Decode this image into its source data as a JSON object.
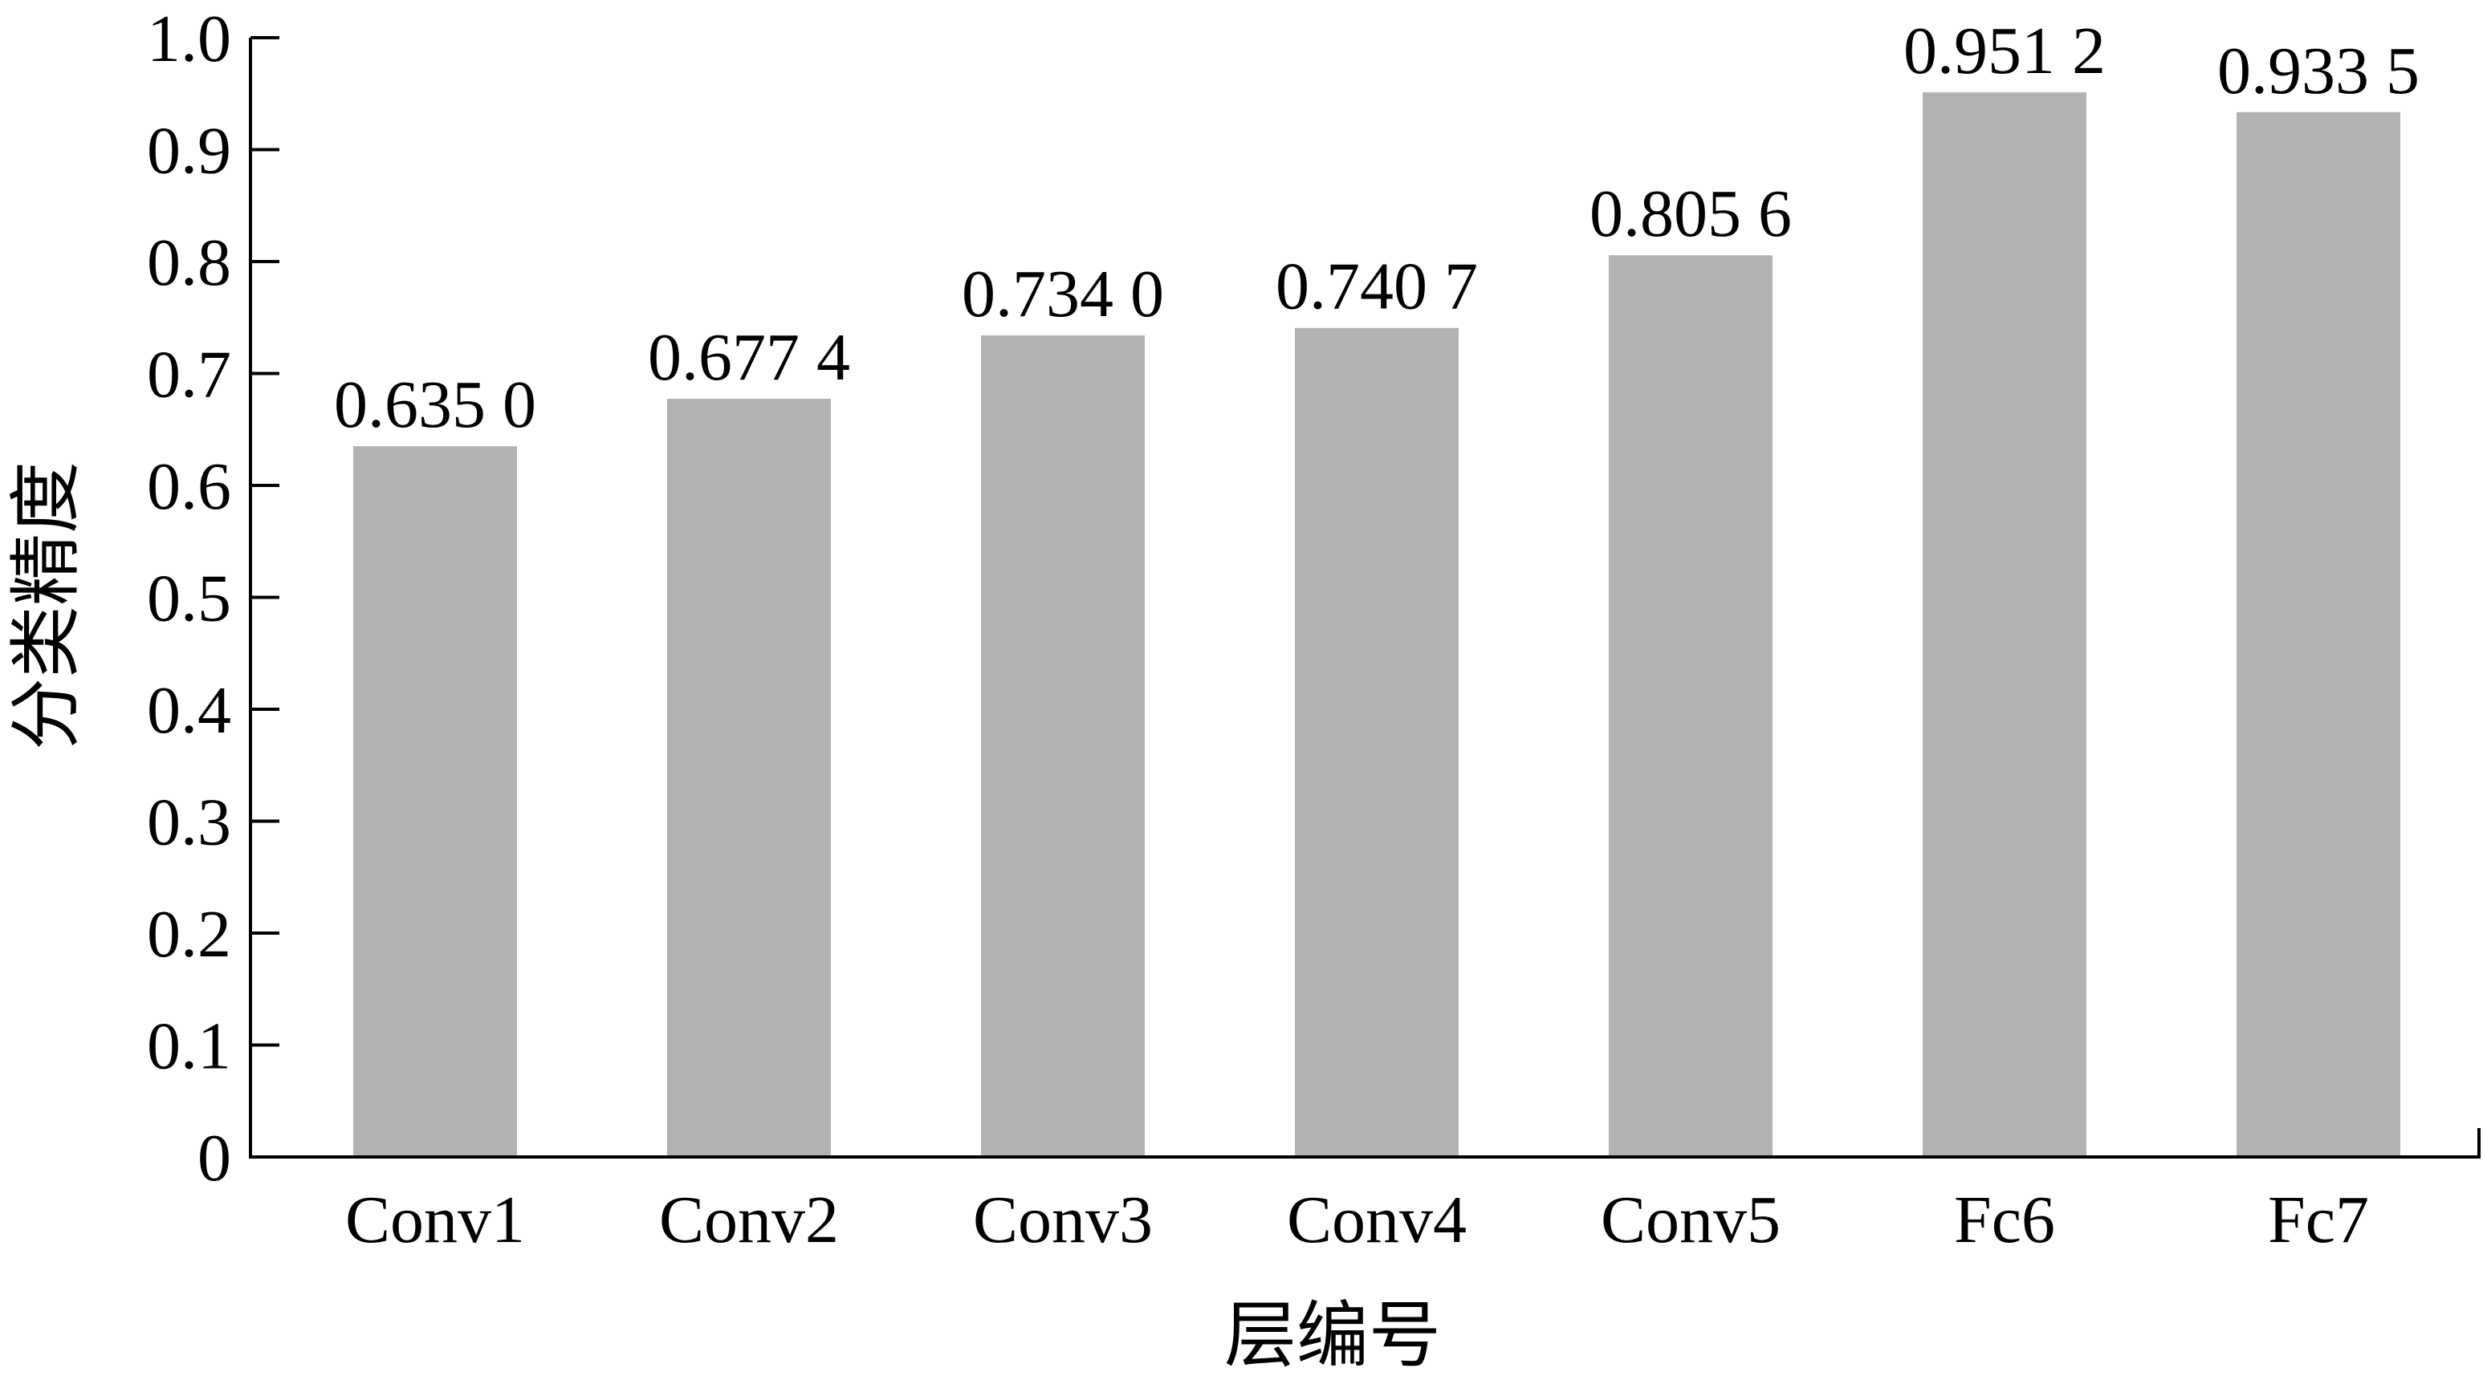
{
  "chart_data": {
    "type": "bar",
    "categories": [
      "Conv1",
      "Conv2",
      "Conv3",
      "Conv4",
      "Conv5",
      "Fc6",
      "Fc7"
    ],
    "values": [
      0.635,
      0.6774,
      0.734,
      0.7407,
      0.8056,
      0.9512,
      0.9335
    ],
    "data_labels": [
      "0.635 0",
      "0.677 4",
      "0.734 0",
      "0.740 7",
      "0.805 6",
      "0.951 2",
      "0.933 5"
    ],
    "yticks": [
      "0",
      "0.1",
      "0.2",
      "0.3",
      "0.4",
      "0.5",
      "0.6",
      "0.7",
      "0.8",
      "0.9",
      "1.0"
    ],
    "xlabel": "层编号",
    "ylabel": "分类精度",
    "ylim": [
      0,
      1.0
    ],
    "grid": false,
    "bar_color": "#b2b2b2",
    "axis_color": "#000000"
  }
}
